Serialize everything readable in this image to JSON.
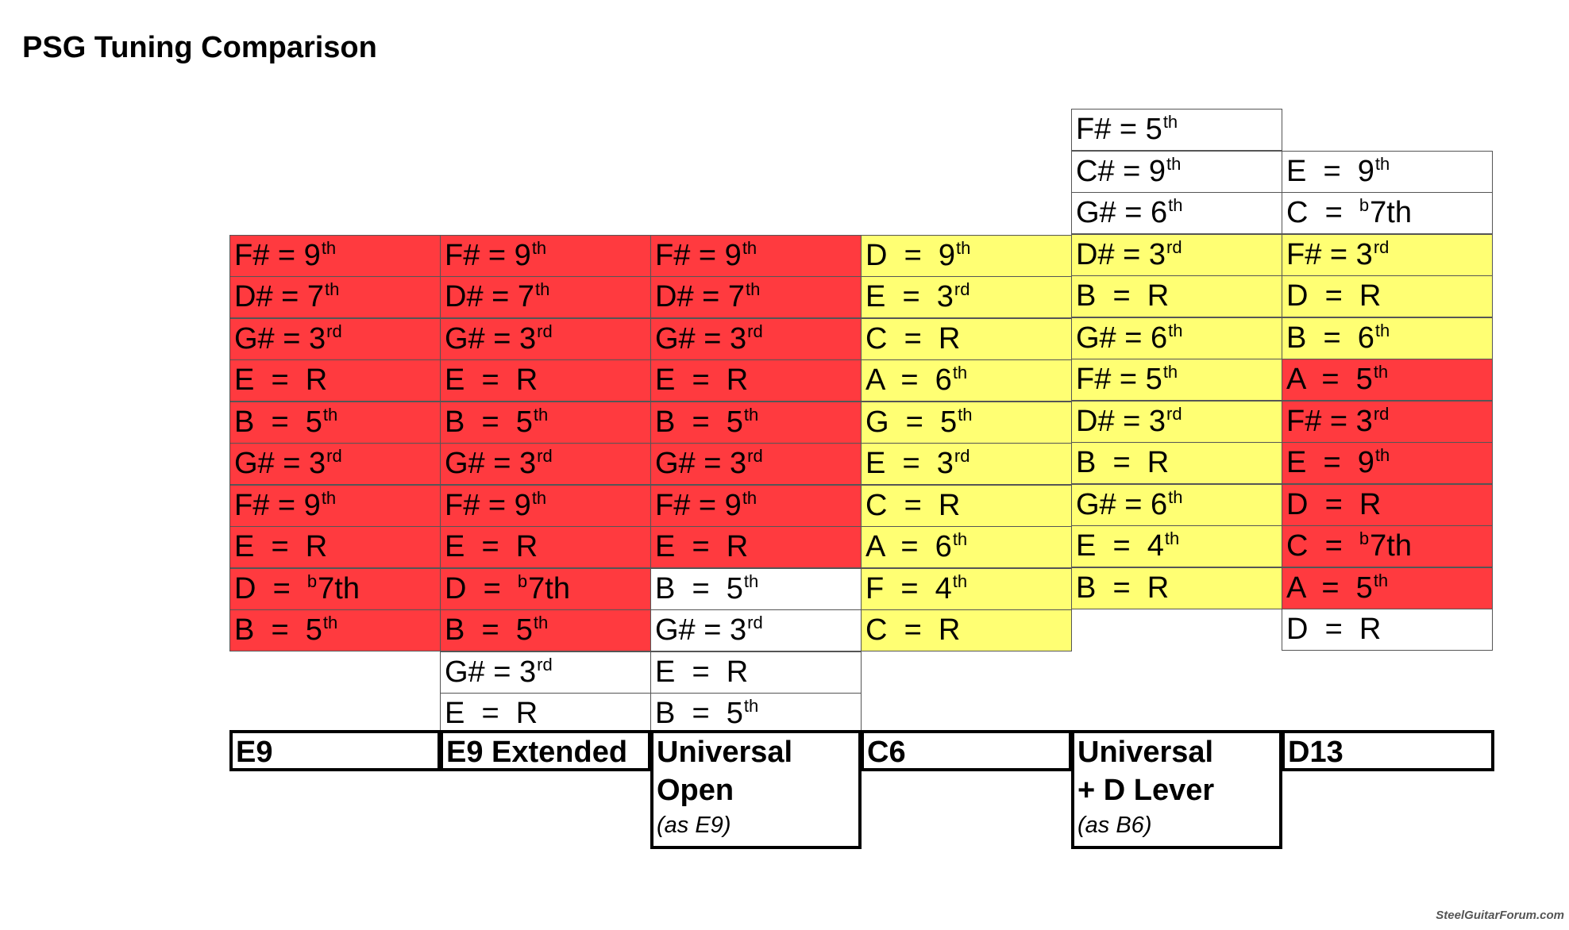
{
  "title": "PSG Tuning Comparison",
  "colors": {
    "red": "#ff3a3f",
    "yellow": "#ffff73",
    "white": "#ffffff"
  },
  "columns": [
    {
      "label": "E9",
      "note": "",
      "cells": [
        {
          "note": "F#",
          "sep": " = ",
          "interval": "9",
          "suffix": "th",
          "color": "red"
        },
        {
          "note": "D#",
          "sep": " = ",
          "interval": "7",
          "suffix": "th",
          "color": "red"
        },
        {
          "note": "G#",
          "sep": " = ",
          "interval": "3",
          "suffix": "rd",
          "color": "red"
        },
        {
          "note": "E",
          "sep": "  =  ",
          "interval": "R",
          "suffix": "",
          "color": "red"
        },
        {
          "note": "B",
          "sep": "  =  ",
          "interval": "5",
          "suffix": "th",
          "color": "red"
        },
        {
          "note": "G#",
          "sep": " = ",
          "interval": "3",
          "suffix": "rd",
          "color": "red"
        },
        {
          "note": "F#",
          "sep": " = ",
          "interval": "9",
          "suffix": "th",
          "color": "red"
        },
        {
          "note": "E",
          "sep": "  =  ",
          "interval": "R",
          "suffix": "",
          "color": "red"
        },
        {
          "note": "D",
          "sep": "  =  ",
          "prefix": "b",
          "interval": "7th",
          "suffix": "",
          "color": "red"
        },
        {
          "note": "B",
          "sep": "  =  ",
          "interval": "5",
          "suffix": "th",
          "color": "red"
        }
      ]
    },
    {
      "label": "E9 Extended",
      "note": "",
      "cells": [
        {
          "note": "F#",
          "sep": " = ",
          "interval": "9",
          "suffix": "th",
          "color": "red"
        },
        {
          "note": "D#",
          "sep": " = ",
          "interval": "7",
          "suffix": "th",
          "color": "red"
        },
        {
          "note": "G#",
          "sep": " = ",
          "interval": "3",
          "suffix": "rd",
          "color": "red"
        },
        {
          "note": "E",
          "sep": "  =  ",
          "interval": "R",
          "suffix": "",
          "color": "red"
        },
        {
          "note": "B",
          "sep": "  =  ",
          "interval": "5",
          "suffix": "th",
          "color": "red"
        },
        {
          "note": "G#",
          "sep": " = ",
          "interval": "3",
          "suffix": "rd",
          "color": "red"
        },
        {
          "note": "F#",
          "sep": " = ",
          "interval": "9",
          "suffix": "th",
          "color": "red"
        },
        {
          "note": "E",
          "sep": "  =  ",
          "interval": "R",
          "suffix": "",
          "color": "red"
        },
        {
          "note": "D",
          "sep": "  =  ",
          "prefix": "b",
          "interval": "7th",
          "suffix": "",
          "color": "red"
        },
        {
          "note": "B",
          "sep": "  =  ",
          "interval": "5",
          "suffix": "th",
          "color": "red"
        },
        {
          "note": "G#",
          "sep": " = ",
          "interval": "3",
          "suffix": "rd",
          "color": "white"
        },
        {
          "note": "E",
          "sep": "  =  ",
          "interval": "R",
          "suffix": "",
          "color": "white"
        }
      ]
    },
    {
      "label": "Universal\nOpen",
      "note": "(as E9)",
      "cells": [
        {
          "note": "F#",
          "sep": " = ",
          "interval": "9",
          "suffix": "th",
          "color": "red"
        },
        {
          "note": "D#",
          "sep": " = ",
          "interval": "7",
          "suffix": "th",
          "color": "red"
        },
        {
          "note": "G#",
          "sep": " = ",
          "interval": "3",
          "suffix": "rd",
          "color": "red"
        },
        {
          "note": "E",
          "sep": "  =  ",
          "interval": "R",
          "suffix": "",
          "color": "red"
        },
        {
          "note": "B",
          "sep": "  =  ",
          "interval": "5",
          "suffix": "th",
          "color": "red"
        },
        {
          "note": "G#",
          "sep": " = ",
          "interval": "3",
          "suffix": "rd",
          "color": "red"
        },
        {
          "note": "F#",
          "sep": " = ",
          "interval": "9",
          "suffix": "th",
          "color": "red"
        },
        {
          "note": "E",
          "sep": "  =  ",
          "interval": "R",
          "suffix": "",
          "color": "red"
        },
        {
          "note": "B",
          "sep": "  =  ",
          "interval": "5",
          "suffix": "th",
          "color": "white"
        },
        {
          "note": "G#",
          "sep": " = ",
          "interval": "3",
          "suffix": "rd",
          "color": "white"
        },
        {
          "note": "E",
          "sep": "  =  ",
          "interval": "R",
          "suffix": "",
          "color": "white"
        },
        {
          "note": "B",
          "sep": "  =  ",
          "interval": "5",
          "suffix": "th",
          "color": "white"
        }
      ]
    },
    {
      "label": "C6",
      "note": "",
      "cells": [
        {
          "note": "D",
          "sep": "  =  ",
          "interval": "9",
          "suffix": "th",
          "color": "yellow"
        },
        {
          "note": "E",
          "sep": "  =  ",
          "interval": "3",
          "suffix": "rd",
          "color": "yellow"
        },
        {
          "note": "C",
          "sep": "  =  ",
          "interval": "R",
          "suffix": "",
          "color": "yellow"
        },
        {
          "note": "A",
          "sep": "  =  ",
          "interval": "6",
          "suffix": "th",
          "color": "yellow"
        },
        {
          "note": "G",
          "sep": "  =  ",
          "interval": "5",
          "suffix": "th",
          "color": "yellow"
        },
        {
          "note": "E",
          "sep": "  =  ",
          "interval": "3",
          "suffix": "rd",
          "color": "yellow"
        },
        {
          "note": "C",
          "sep": "  =  ",
          "interval": "R",
          "suffix": "",
          "color": "yellow"
        },
        {
          "note": "A",
          "sep": "  =  ",
          "interval": "6",
          "suffix": "th",
          "color": "yellow"
        },
        {
          "note": "F",
          "sep": "  =  ",
          "interval": "4",
          "suffix": "th",
          "color": "yellow"
        },
        {
          "note": "C",
          "sep": "  =  ",
          "interval": "R",
          "suffix": "",
          "color": "yellow"
        }
      ]
    },
    {
      "label": "Universal\n+ D Lever",
      "note": "(as B6)",
      "cells": [
        {
          "note": "F#",
          "sep": " = ",
          "interval": "5",
          "suffix": "th",
          "color": "white"
        },
        {
          "note": "C#",
          "sep": " = ",
          "interval": "9",
          "suffix": "th",
          "color": "white"
        },
        {
          "note": "G#",
          "sep": " = ",
          "interval": "6",
          "suffix": "th",
          "color": "white"
        },
        {
          "note": "D#",
          "sep": " = ",
          "interval": "3",
          "suffix": "rd",
          "color": "yellow"
        },
        {
          "note": "B",
          "sep": "  =  ",
          "interval": "R",
          "suffix": "",
          "color": "yellow"
        },
        {
          "note": "G#",
          "sep": " = ",
          "interval": "6",
          "suffix": "th",
          "color": "yellow"
        },
        {
          "note": "F#",
          "sep": " = ",
          "interval": "5",
          "suffix": "th",
          "color": "yellow"
        },
        {
          "note": "D#",
          "sep": " = ",
          "interval": "3",
          "suffix": "rd",
          "color": "yellow"
        },
        {
          "note": "B",
          "sep": "  =  ",
          "interval": "R",
          "suffix": "",
          "color": "yellow"
        },
        {
          "note": "G#",
          "sep": " = ",
          "interval": "6",
          "suffix": "th",
          "color": "yellow"
        },
        {
          "note": "E",
          "sep": "  =  ",
          "interval": "4",
          "suffix": "th",
          "color": "yellow"
        },
        {
          "note": "B",
          "sep": "  =  ",
          "interval": "R",
          "suffix": "",
          "color": "yellow"
        }
      ]
    },
    {
      "label": "D13",
      "note": "",
      "cells": [
        {
          "note": "E",
          "sep": "  =  ",
          "interval": "9",
          "suffix": "th",
          "color": "white"
        },
        {
          "note": "C",
          "sep": "  =  ",
          "prefix": "b",
          "interval": "7th",
          "suffix": "",
          "color": "white"
        },
        {
          "note": "F#",
          "sep": " = ",
          "interval": "3",
          "suffix": "rd",
          "color": "yellow"
        },
        {
          "note": "D",
          "sep": "  =  ",
          "interval": "R",
          "suffix": "",
          "color": "yellow"
        },
        {
          "note": "B",
          "sep": "  =  ",
          "interval": "6",
          "suffix": "th",
          "color": "yellow"
        },
        {
          "note": "A",
          "sep": "  =  ",
          "interval": "5",
          "suffix": "th",
          "color": "red"
        },
        {
          "note": "F#",
          "sep": " = ",
          "interval": "3",
          "suffix": "rd",
          "color": "red"
        },
        {
          "note": "E",
          "sep": "  =  ",
          "interval": "9",
          "suffix": "th",
          "color": "red"
        },
        {
          "note": "D",
          "sep": "  =  ",
          "interval": "R",
          "suffix": "",
          "color": "red"
        },
        {
          "note": "C",
          "sep": "  =  ",
          "prefix": "b",
          "interval": "7th",
          "suffix": "",
          "color": "red"
        },
        {
          "note": "A",
          "sep": "  =  ",
          "interval": "5",
          "suffix": "th",
          "color": "red"
        },
        {
          "note": "D",
          "sep": "  =  ",
          "interval": "R",
          "suffix": "",
          "color": "white"
        }
      ]
    }
  ],
  "credit": "SteelGuitarForum.com"
}
